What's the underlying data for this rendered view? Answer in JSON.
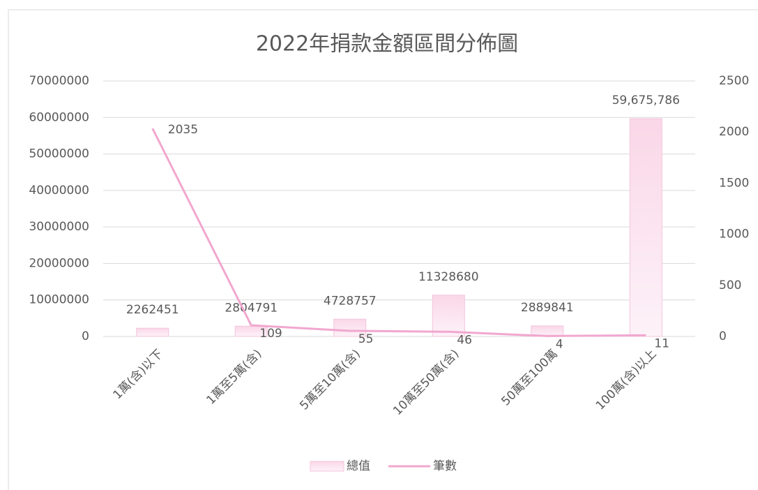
{
  "chart_data": {
    "type": "bar",
    "title": "2022年捐款金額區間分佈圖",
    "categories": [
      "1萬(含)以下",
      "1萬至5萬(含)",
      "5萬至10萬(含)",
      "10萬至50萬(含)",
      "50萬至100萬",
      "100萬(含)以上"
    ],
    "series": [
      {
        "name": "總值",
        "type": "bar",
        "color": "#fbe3ef",
        "values": [
          2262451,
          2804791,
          4728757,
          11328680,
          2889841,
          59675786
        ],
        "value_labels": [
          "2262451",
          "2804791",
          "4728757",
          "11328680",
          "2889841",
          "59,675,786"
        ]
      },
      {
        "name": "筆數",
        "type": "line",
        "axis": "y2",
        "color": "#f1a7cf",
        "values": [
          2035,
          109,
          55,
          46,
          4,
          11
        ]
      }
    ],
    "ylim": [
      0,
      70000000
    ],
    "yticks": [
      0,
      10000000,
      20000000,
      30000000,
      40000000,
      50000000,
      60000000,
      70000000
    ],
    "y2lim": [
      0,
      2500
    ],
    "y2ticks": [
      0,
      500,
      1000,
      1500,
      2000,
      2500
    ],
    "grid": true,
    "legend": "bottom"
  }
}
